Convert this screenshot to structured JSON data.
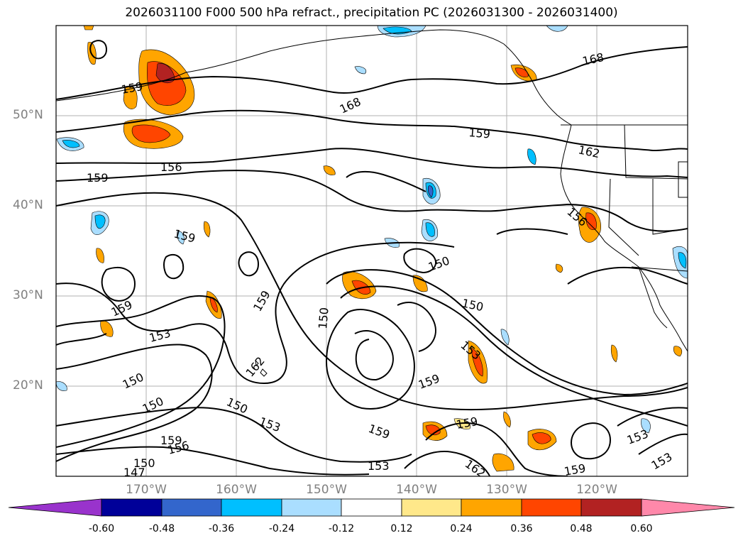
{
  "title": "2026031100 F000 500 hPa refract., precipitation PC (2026031300 - 2026031400)",
  "lat_labels": [
    "50°N",
    "40°N",
    "30°N",
    "20°N"
  ],
  "lon_labels": [
    "170°W",
    "160°W",
    "150°W",
    "140°W",
    "130°W",
    "120°W"
  ],
  "contour_labels": [
    "168",
    "168",
    "159",
    "159",
    "162",
    "156",
    "159",
    "156",
    "159",
    "159",
    "159",
    "150",
    "150",
    "150",
    "153",
    "153",
    "150",
    "150",
    "162",
    "150",
    "153",
    "159",
    "159",
    "159",
    "159",
    "156",
    "150",
    "147",
    "153",
    "162",
    "159",
    "153",
    "153"
  ],
  "colorbar": {
    "ticks": [
      "-0.60",
      "-0.48",
      "-0.36",
      "-0.24",
      "-0.12",
      "0.12",
      "0.24",
      "0.36",
      "0.48",
      "0.60"
    ],
    "colors": [
      "#9933cc",
      "#000099",
      "#3366cc",
      "#00bfff",
      "#aadeff",
      "#ffffff",
      "#ffe88a",
      "#ffa500",
      "#ff4500",
      "#b22222",
      "#ff88aa"
    ]
  }
}
